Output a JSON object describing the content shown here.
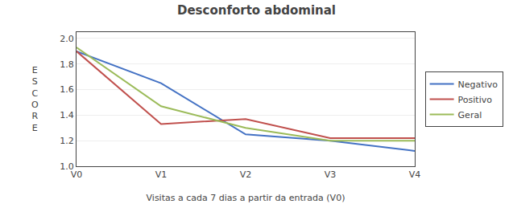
{
  "chart_data": {
    "type": "line",
    "title": "Desconforto abdominal",
    "xlabel": "Visitas a cada 7 dias a partir da entrada (V0)",
    "ylabel": "ESCORE",
    "categories": [
      "V0",
      "V1",
      "V2",
      "V3",
      "V4"
    ],
    "series": [
      {
        "name": "Negativo",
        "color": "#4472C4",
        "values": [
          1.9,
          1.65,
          1.25,
          1.2,
          1.12
        ]
      },
      {
        "name": "Positivo",
        "color": "#C0504D",
        "values": [
          1.9,
          1.33,
          1.37,
          1.22,
          1.22
        ]
      },
      {
        "name": "Geral",
        "color": "#9BBB59",
        "values": [
          1.93,
          1.47,
          1.3,
          1.2,
          1.2
        ]
      }
    ],
    "ylim": [
      1.0,
      2.05
    ],
    "yticks": [
      {
        "value": 1.0,
        "label": "1.0"
      },
      1.2,
      1.4,
      1.6,
      1.8,
      {
        "value": 2.0,
        "label": "2.0"
      }
    ],
    "grid": true,
    "legend": "right"
  }
}
